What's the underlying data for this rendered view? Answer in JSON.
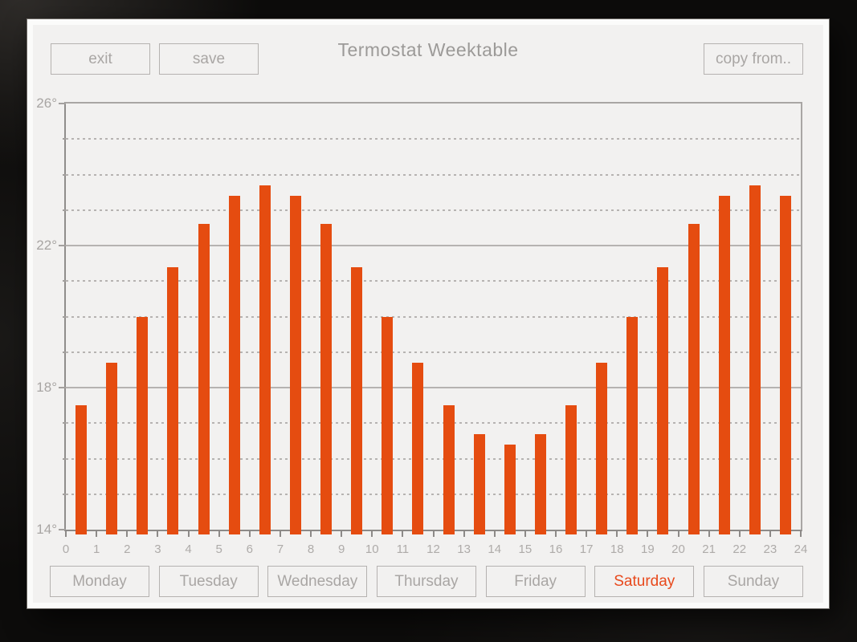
{
  "header": {
    "title": "Termostat Weektable",
    "exit_button": "exit",
    "save_button": "save",
    "copy_from_button": "copy from.."
  },
  "colors": {
    "accent": "#e8491c",
    "bar": "#e54c10",
    "panel_background": "#f2f1f0",
    "muted_text": "#a9a6a4",
    "grid": "#b6b3b1",
    "axis": "#8d8a88",
    "screen_background": "#0d0c0b"
  },
  "chart_data": {
    "type": "bar",
    "title": "",
    "hours": [
      0,
      1,
      2,
      3,
      4,
      5,
      6,
      7,
      8,
      9,
      10,
      11,
      12,
      13,
      14,
      15,
      16,
      17,
      18,
      19,
      20,
      21,
      22,
      23
    ],
    "values": [
      17.5,
      18.7,
      20.0,
      21.4,
      22.6,
      23.4,
      23.7,
      23.4,
      22.6,
      21.4,
      20.0,
      18.7,
      17.5,
      16.7,
      16.4,
      16.7,
      17.5,
      18.7,
      20.0,
      21.4,
      22.6,
      23.4,
      23.7,
      23.4
    ],
    "xlim": [
      0,
      24
    ],
    "ylim": [
      14,
      26
    ],
    "xticks": [
      0,
      1,
      2,
      3,
      4,
      5,
      6,
      7,
      8,
      9,
      10,
      11,
      12,
      13,
      14,
      15,
      16,
      17,
      18,
      19,
      20,
      21,
      22,
      23,
      24
    ],
    "ytick_values": [
      26,
      22,
      18,
      14
    ],
    "ytick_labels": [
      "26°",
      "22°",
      "18°",
      "14°"
    ],
    "solid_gridlines": [
      26,
      22,
      18,
      14
    ],
    "dashed_gridlines": [
      25,
      24,
      23,
      21,
      20,
      19,
      17,
      16,
      15
    ],
    "grid": true,
    "legend_position": "none",
    "bar_color": "#e54c10"
  },
  "day_tabs": [
    {
      "label": "Monday",
      "selected": false
    },
    {
      "label": "Tuesday",
      "selected": false
    },
    {
      "label": "Wednesday",
      "selected": false
    },
    {
      "label": "Thursday",
      "selected": false
    },
    {
      "label": "Friday",
      "selected": false
    },
    {
      "label": "Saturday",
      "selected": true
    },
    {
      "label": "Sunday",
      "selected": false
    }
  ]
}
